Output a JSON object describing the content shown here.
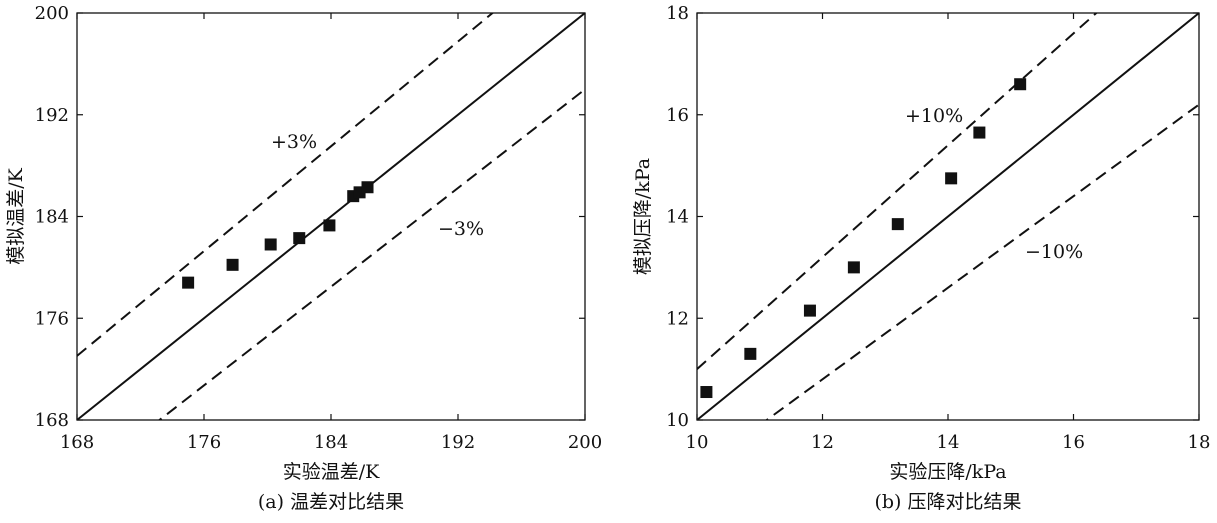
{
  "chart_data": [
    {
      "type": "scatter",
      "caption": "(a) 温差对比结果",
      "xlabel": "实验温差/K",
      "ylabel": "模拟温差/K",
      "xlim": [
        168,
        200
      ],
      "ylim": [
        168,
        200
      ],
      "xticks": [
        "168",
        "176",
        "184",
        "192",
        "200"
      ],
      "yticks": [
        "168",
        "176",
        "184",
        "192",
        "200"
      ],
      "grid": false,
      "legend": "none",
      "band_pct": 3,
      "upper_band_label": "+3%",
      "lower_band_label": "−3%",
      "series": [
        {
          "marker": "square",
          "points": [
            {
              "x": 175.0,
              "y": 178.8
            },
            {
              "x": 177.8,
              "y": 180.2
            },
            {
              "x": 180.2,
              "y": 181.8
            },
            {
              "x": 182.0,
              "y": 182.3
            },
            {
              "x": 183.9,
              "y": 183.3
            },
            {
              "x": 185.4,
              "y": 185.6
            },
            {
              "x": 185.8,
              "y": 185.9
            },
            {
              "x": 186.3,
              "y": 186.3
            }
          ]
        }
      ]
    },
    {
      "type": "scatter",
      "caption": "(b) 压降对比结果",
      "xlabel": "实验压降/kPa",
      "ylabel": "模拟压降/kPa",
      "xlim": [
        10,
        18
      ],
      "ylim": [
        10,
        18
      ],
      "xticks": [
        "10",
        "12",
        "14",
        "16",
        "18"
      ],
      "yticks": [
        "10",
        "12",
        "14",
        "16",
        "18"
      ],
      "grid": false,
      "legend": "none",
      "band_pct": 10,
      "upper_band_label": "+10%",
      "lower_band_label": "−10%",
      "series": [
        {
          "marker": "square",
          "points": [
            {
              "x": 10.15,
              "y": 10.55
            },
            {
              "x": 10.85,
              "y": 11.3
            },
            {
              "x": 11.8,
              "y": 12.15
            },
            {
              "x": 12.5,
              "y": 13.0
            },
            {
              "x": 13.2,
              "y": 13.85
            },
            {
              "x": 14.05,
              "y": 14.75
            },
            {
              "x": 14.5,
              "y": 15.65
            },
            {
              "x": 15.15,
              "y": 16.6
            }
          ]
        }
      ]
    }
  ]
}
